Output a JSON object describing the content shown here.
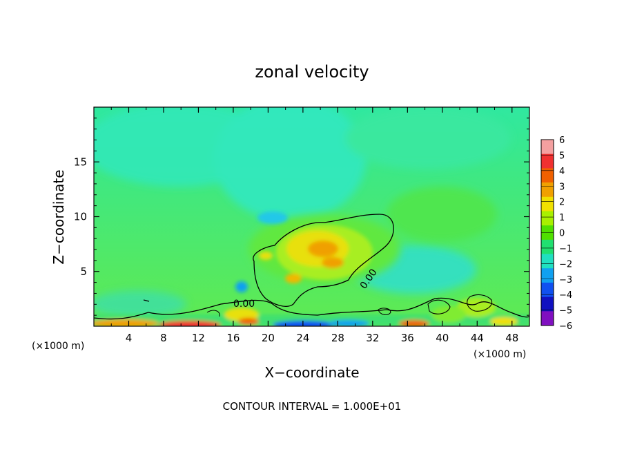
{
  "chart_data": {
    "type": "heatmap",
    "title": "zonal velocity",
    "xlabel": "X−coordinate",
    "ylabel": "Z−coordinate",
    "x_unit_left": "(×1000 m)",
    "x_unit_right": "(×1000 m)",
    "xlim": [
      0,
      50
    ],
    "ylim": [
      0,
      20
    ],
    "x_ticks": [
      4,
      8,
      12,
      16,
      20,
      24,
      28,
      32,
      36,
      40,
      44,
      48
    ],
    "y_ticks": [
      5,
      10,
      15
    ],
    "contour_label": "0.00",
    "footer": "CONTOUR INTERVAL = 1.000E+01",
    "colorbar": {
      "levels": [
        6,
        5,
        4,
        3,
        2,
        1,
        0,
        -1,
        -2,
        -3,
        -4,
        -5,
        -6
      ],
      "labels": [
        "6",
        "5",
        "4",
        "3",
        "2",
        "1",
        "0",
        "−1",
        "−2",
        "−3",
        "−4",
        "−5",
        "−6"
      ],
      "colors": [
        "#f4a0a0",
        "#f03030",
        "#f06000",
        "#f0a000",
        "#f0e000",
        "#a8f000",
        "#50e000",
        "#20e070",
        "#20e0c0",
        "#10a0f0",
        "#1050f0",
        "#1010c0",
        "#8010c0"
      ]
    },
    "features": [
      {
        "name": "positive core",
        "x": 25.5,
        "z": 6.5,
        "value": 3
      },
      {
        "name": "negative aloft",
        "x": 20.5,
        "z": 10,
        "value": -2
      },
      {
        "name": "surface jet",
        "x": 10,
        "z": 0.2,
        "value": 5
      },
      {
        "name": "surface negative",
        "x": 24,
        "z": 0.2,
        "value": -5
      }
    ]
  }
}
